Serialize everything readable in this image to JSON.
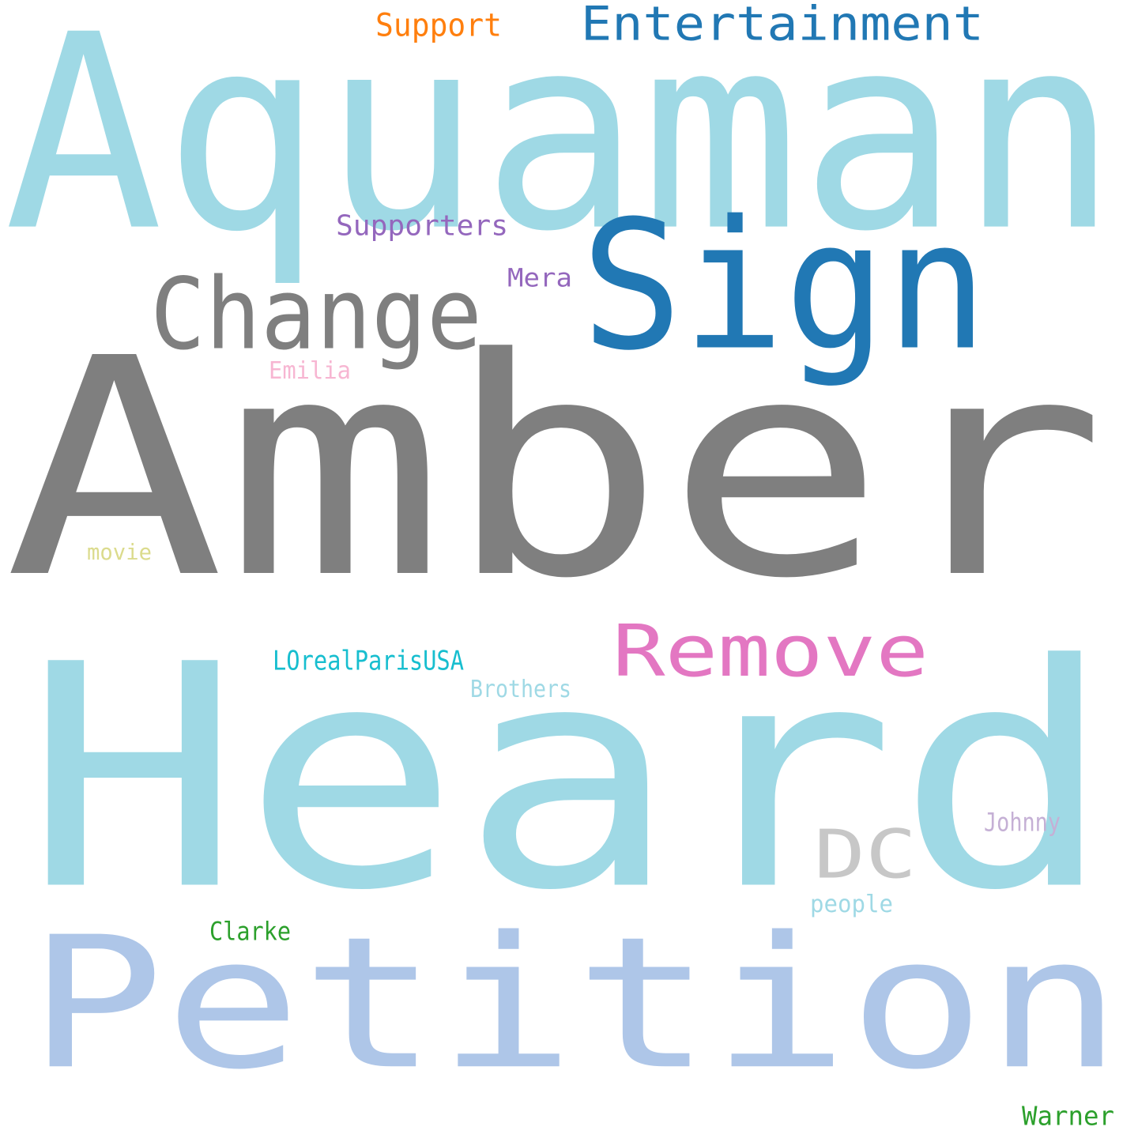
{
  "words": [
    {
      "text": "Aquaman",
      "color": "#9fd9e5"
    },
    {
      "text": "Sign",
      "color": "#2178b4"
    },
    {
      "text": "Amber",
      "color": "#7f7f7f"
    },
    {
      "text": "Heard",
      "color": "#9fd9e5"
    },
    {
      "text": "Petition",
      "color": "#aec6e8"
    },
    {
      "text": "Change",
      "color": "#7f7f7f"
    },
    {
      "text": "Remove",
      "color": "#e377c2"
    },
    {
      "text": "Entertainment",
      "color": "#2178b4"
    },
    {
      "text": "DC",
      "color": "#c7c7c7"
    },
    {
      "text": "Support",
      "color": "#ff7f0e"
    },
    {
      "text": "Supporters",
      "color": "#9467bd"
    },
    {
      "text": "Mera",
      "color": "#9467bd"
    },
    {
      "text": "Emilia",
      "color": "#f7b6d2"
    },
    {
      "text": "movie",
      "color": "#dbdb8d"
    },
    {
      "text": "LOrealParisUSA",
      "color": "#17becf"
    },
    {
      "text": "Brothers",
      "color": "#9fd9e5"
    },
    {
      "text": "Johnny",
      "color": "#c5b0d5"
    },
    {
      "text": "people",
      "color": "#9fd9e5"
    },
    {
      "text": "Clarke",
      "color": "#2ca02c"
    },
    {
      "text": "Warner",
      "color": "#2ca02c"
    }
  ]
}
